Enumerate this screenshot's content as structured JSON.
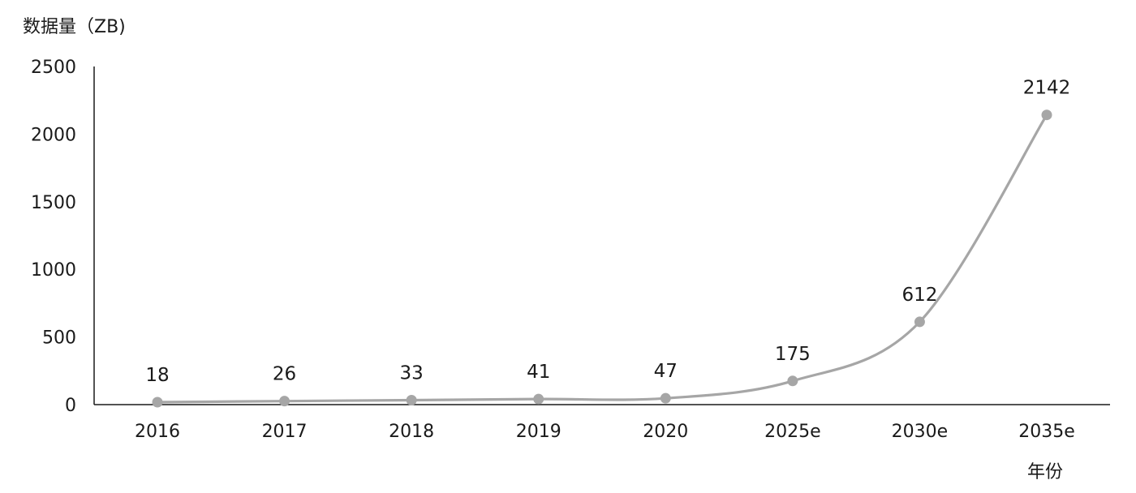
{
  "chart_data": {
    "type": "line",
    "title": "",
    "ylabel": "数据量（ZB)",
    "xlabel": "年份",
    "categories": [
      "2016",
      "2017",
      "2018",
      "2019",
      "2020",
      "2025e",
      "2030e",
      "2035e"
    ],
    "series": [
      {
        "values": [
          18,
          26,
          33,
          41,
          47,
          175,
          612,
          2142
        ],
        "color": "#a6a6a6"
      }
    ],
    "data_labels": [
      "18",
      "26",
      "33",
      "41",
      "47",
      "175",
      "612",
      "2142"
    ],
    "y_ticks": [
      "0",
      "500",
      "1000",
      "1500",
      "2000",
      "2500"
    ],
    "ylim": [
      0,
      2500
    ],
    "smooth": true,
    "grid": false,
    "legend": "none"
  }
}
